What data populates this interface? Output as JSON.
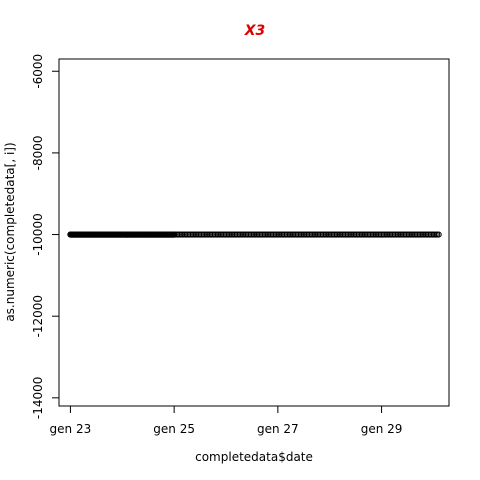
{
  "chart_data": {
    "type": "scatter",
    "title": "X3",
    "title_color": "#dd0000",
    "xlabel": "completedata$date",
    "ylabel": "as.numeric(completedata[, i])",
    "x_ticks": [
      "gen 23",
      "gen 25",
      "gen 27",
      "gen 29"
    ],
    "x_tick_values": [
      23,
      25,
      27,
      29
    ],
    "xlim": [
      22.78,
      30.3
    ],
    "y_ticks": [
      -14000,
      -12000,
      -10000,
      -8000,
      -6000
    ],
    "ylim": [
      -14200,
      -5700
    ],
    "grid": false,
    "legend": "none",
    "point_color": "#000000",
    "series": [
      {
        "dense_segment": {
          "x_start": 23.0,
          "x_end": 25.0,
          "y": -10000
        },
        "sparse_segment": {
          "x_start": 25.0,
          "x_end": 30.1,
          "y": -10000
        }
      }
    ]
  }
}
